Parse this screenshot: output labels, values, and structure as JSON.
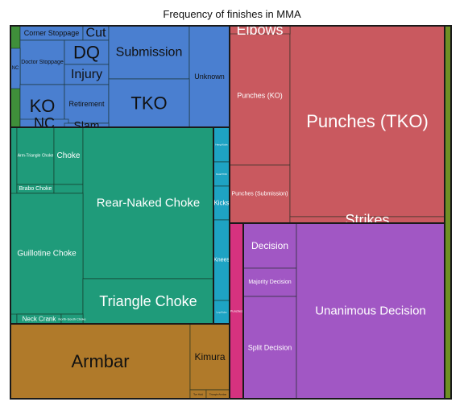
{
  "chart_data": {
    "type": "treemap",
    "title": "Frequency of finishes in MMA",
    "colors": {
      "submission": "#4a7fd0",
      "choke": "#1f9b7a",
      "jointlock": "#b07a2a",
      "ko_tko": "#c9595f",
      "strikes_pink": "#d6327f",
      "decision": "#a157c4",
      "cyan": "#1ea3c3",
      "olive": "#6f8f24",
      "green_edge": "#3f8f3a"
    },
    "labels": {
      "corner_stoppage": "Corner Stoppage",
      "cut": "Cut",
      "doctor_stoppage": "Doctor Stoppage",
      "dq": "DQ",
      "injury": "Injury",
      "submission": "Submission",
      "unknown": "Unknown",
      "nc_small": "NC",
      "ko": "KO",
      "retirement": "Retirement",
      "tko": "TKO",
      "nc": "NC",
      "slam": "Slam",
      "elbows": "Elbows",
      "punches_ko": "Punches (KO)",
      "punches_tko": "Punches (TKO)",
      "punches_submission": "Punches (Submission)",
      "strikes": "Strikes",
      "arm_triangle_choke": "Arm-Triangle Choke",
      "choke": "Choke",
      "brabo_choke": "Brabo Choke",
      "rear_naked_choke": "Rear-Naked Choke",
      "guillotine_choke": "Guillotine Choke",
      "triangle_choke": "Triangle Choke",
      "neck_crank": "Neck Crank",
      "north_south_choke": "North-South Choke",
      "kicks": "Kicks",
      "knees": "Knees",
      "head_kick": "Head Kick",
      "leg_kicks": "Leg Kicks",
      "hang_kicks": "Hang Kicks",
      "decision": "Decision",
      "majority_decision": "Majority Decision",
      "split_decision": "Split Decision",
      "unanimous_decision": "Unanimous Decision",
      "armbar": "Armbar",
      "kimura": "Kimura",
      "punches_small": "Punches",
      "strikes_small": "Strikes",
      "elbows_small": "Elbows",
      "toe_hold": "Toe Hold",
      "triangle_armbar": "Triangle Armbar",
      "heel_hook": "Heel Hook"
    }
  }
}
